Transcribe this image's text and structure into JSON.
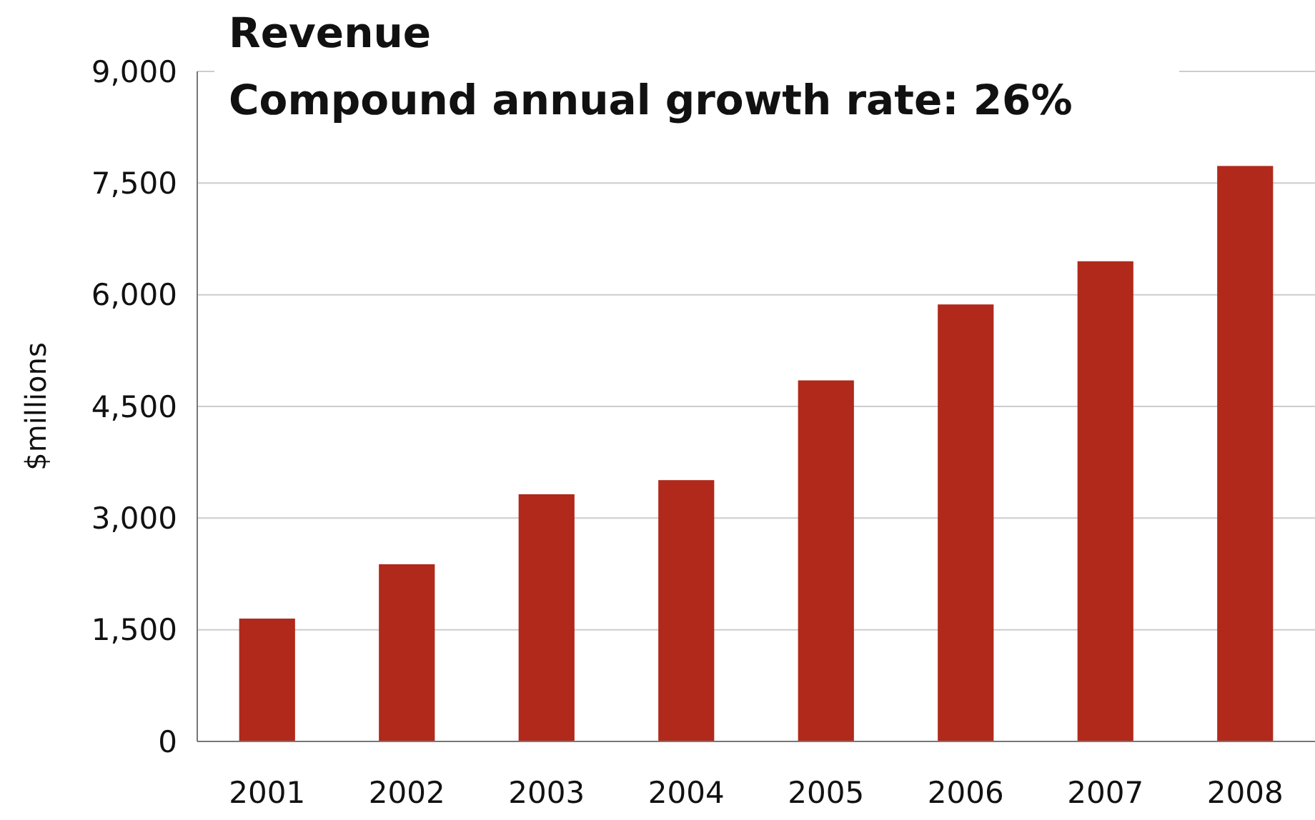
{
  "chart_data": {
    "type": "bar",
    "title": "Revenue",
    "subtitle": "Compound annual growth rate: 26%",
    "ylabel": "$millions",
    "categories": [
      "2001",
      "2002",
      "2003",
      "2004",
      "2005",
      "2006",
      "2007",
      "2008"
    ],
    "values": [
      1650,
      2380,
      3320,
      3510,
      4850,
      5870,
      6450,
      7730
    ],
    "color": "#b0291b",
    "ylim": [
      0,
      9000
    ],
    "yticks": [
      {
        "value": 0,
        "label": "0"
      },
      {
        "value": 1500,
        "label": "1,500"
      },
      {
        "value": 3000,
        "label": "3,000"
      },
      {
        "value": 4500,
        "label": "4,500"
      },
      {
        "value": 6000,
        "label": "6,000"
      },
      {
        "value": 7500,
        "label": "7,500"
      },
      {
        "value": 9000,
        "label": "9,000"
      }
    ],
    "grid": "y"
  }
}
